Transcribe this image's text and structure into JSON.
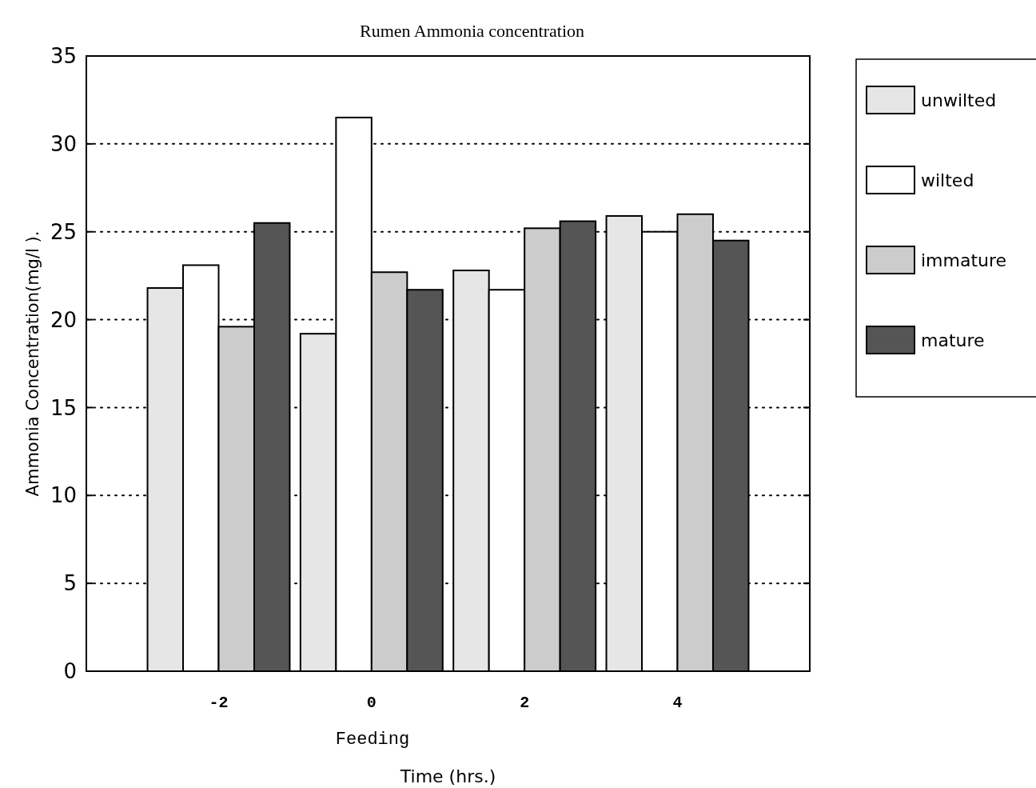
{
  "chart_data": {
    "type": "bar",
    "title": "Rumen Ammonia concentration",
    "xlabel": "Time (hrs.)",
    "ylabel": "Ammonia Concentration(mg/l ).",
    "annotations": [
      "Feeding"
    ],
    "categories": [
      "-2",
      "0",
      "2",
      "4"
    ],
    "series": [
      {
        "name": "unwilted",
        "color": "#e6e6e6",
        "values": [
          21.8,
          19.2,
          22.8,
          25.9
        ]
      },
      {
        "name": "wilted",
        "color": "#ffffff",
        "values": [
          23.1,
          31.5,
          21.7,
          25.0
        ]
      },
      {
        "name": "immature",
        "color": "#cccccc",
        "values": [
          19.6,
          22.7,
          25.2,
          26.0
        ]
      },
      {
        "name": "mature",
        "color": "#555555",
        "values": [
          25.5,
          21.7,
          25.6,
          24.5
        ]
      }
    ],
    "ylim": [
      0,
      35
    ],
    "yticks": [
      0,
      5,
      10,
      15,
      20,
      25,
      30,
      35
    ],
    "grid": "y",
    "legend": "top right"
  }
}
